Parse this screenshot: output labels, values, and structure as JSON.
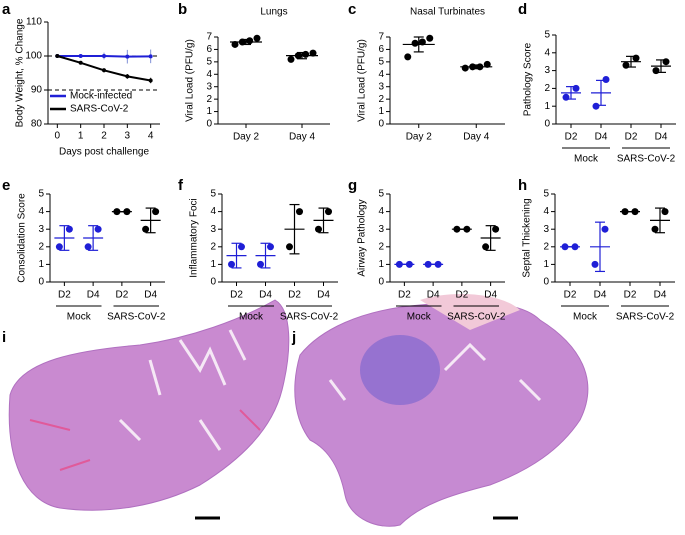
{
  "chart_data": [
    {
      "type": "line",
      "panel": "a",
      "ylabel": "Body Weight, % Change",
      "xlabel": "Days post challenge",
      "x": [
        0,
        1,
        2,
        3,
        4
      ],
      "xlim": [
        -0.4,
        4.4
      ],
      "xticks": [
        0,
        1,
        2,
        3,
        4
      ],
      "ylim": [
        80,
        110
      ],
      "yticks": [
        80,
        90,
        100,
        110
      ],
      "reference_lines": [
        100,
        90
      ],
      "legend": "lower left",
      "series": [
        {
          "name": "Mock-infected",
          "color": "#1f1fd6",
          "values": [
            100,
            100,
            100,
            99.8,
            99.9
          ],
          "errors": [
            0,
            0.5,
            1,
            2,
            2
          ]
        },
        {
          "name": "SARS-CoV-2",
          "color": "#000000",
          "values": [
            100,
            98,
            95.8,
            94,
            92.8
          ],
          "errors": [
            0,
            0.4,
            0.6,
            0.7,
            0.8
          ]
        }
      ]
    },
    {
      "type": "dot",
      "panel": "b",
      "title": "Lungs",
      "ylabel": "Viral Load (PFU/g)",
      "categories": [
        "Day 2",
        "Day 4"
      ],
      "colors": [
        "#000000",
        "#000000"
      ],
      "points": [
        [
          6.4,
          6.6,
          6.7,
          6.9
        ],
        [
          5.2,
          5.5,
          5.6,
          5.7
        ]
      ],
      "means": [
        6.6,
        5.5
      ],
      "errors": [
        0.2,
        0.25
      ],
      "ylim": [
        0,
        7
      ],
      "yticks": [
        0,
        1,
        2,
        3,
        4,
        5,
        6,
        7
      ]
    },
    {
      "type": "dot",
      "panel": "c",
      "title": "Nasal Turbinates",
      "ylabel": "Viral Load (PFU/g)",
      "categories": [
        "Day 2",
        "Day 4"
      ],
      "colors": [
        "#000000",
        "#000000"
      ],
      "points": [
        [
          5.4,
          6.5,
          6.6,
          6.9
        ],
        [
          4.5,
          4.6,
          4.6,
          4.8
        ]
      ],
      "means": [
        6.4,
        4.6
      ],
      "errors": [
        0.6,
        0.15
      ],
      "ylim": [
        0,
        7
      ],
      "yticks": [
        0,
        1,
        2,
        3,
        4,
        5,
        6,
        7
      ]
    },
    {
      "type": "dot",
      "panel": "d",
      "ylabel": "Pathology Score",
      "categories": [
        "D2",
        "D4",
        "D2",
        "D4"
      ],
      "group_labels": [
        "Mock",
        "SARS-CoV-2"
      ],
      "colors": [
        "#1f1fd6",
        "#1f1fd6",
        "#000000",
        "#000000"
      ],
      "points": [
        [
          1.5,
          2
        ],
        [
          1,
          2.5
        ],
        [
          3.3,
          3.7
        ],
        [
          3,
          3.5
        ]
      ],
      "means": [
        1.75,
        1.75,
        3.5,
        3.25
      ],
      "errors": [
        0.35,
        0.7,
        0.3,
        0.35
      ],
      "ylim": [
        0,
        5
      ],
      "yticks": [
        0,
        1,
        2,
        3,
        4,
        5
      ]
    },
    {
      "type": "dot",
      "panel": "e",
      "ylabel": "Consolidation Score",
      "categories": [
        "D2",
        "D4",
        "D2",
        "D4"
      ],
      "group_labels": [
        "Mock",
        "SARS-CoV-2"
      ],
      "colors": [
        "#1f1fd6",
        "#1f1fd6",
        "#000000",
        "#000000"
      ],
      "points": [
        [
          2,
          3
        ],
        [
          2,
          3
        ],
        [
          4,
          4
        ],
        [
          3,
          4
        ]
      ],
      "means": [
        2.5,
        2.5,
        4,
        3.5
      ],
      "errors": [
        0.7,
        0.7,
        0,
        0.7
      ],
      "ylim": [
        0,
        5
      ],
      "yticks": [
        0,
        1,
        2,
        3,
        4,
        5
      ]
    },
    {
      "type": "dot",
      "panel": "f",
      "ylabel": "Inflammatory Foci",
      "categories": [
        "D2",
        "D4",
        "D2",
        "D4"
      ],
      "group_labels": [
        "Mock",
        "SARS-CoV-2"
      ],
      "colors": [
        "#1f1fd6",
        "#1f1fd6",
        "#000000",
        "#000000"
      ],
      "points": [
        [
          1,
          2
        ],
        [
          1,
          2
        ],
        [
          2,
          4
        ],
        [
          3,
          4
        ]
      ],
      "means": [
        1.5,
        1.5,
        3,
        3.5
      ],
      "errors": [
        0.7,
        0.7,
        1.4,
        0.7
      ],
      "ylim": [
        0,
        5
      ],
      "yticks": [
        0,
        1,
        2,
        3,
        4,
        5
      ]
    },
    {
      "type": "dot",
      "panel": "g",
      "ylabel": "Airway Pathology",
      "categories": [
        "D2",
        "D4",
        "D2",
        "D4"
      ],
      "group_labels": [
        "Mock",
        "SARS-CoV-2"
      ],
      "colors": [
        "#1f1fd6",
        "#1f1fd6",
        "#000000",
        "#000000"
      ],
      "points": [
        [
          1,
          1
        ],
        [
          1,
          1
        ],
        [
          3,
          3
        ],
        [
          2,
          3
        ]
      ],
      "means": [
        1,
        1,
        3,
        2.5
      ],
      "errors": [
        0,
        0,
        0,
        0.7
      ],
      "ylim": [
        0,
        5
      ],
      "yticks": [
        0,
        1,
        2,
        3,
        4,
        5
      ]
    },
    {
      "type": "dot",
      "panel": "h",
      "ylabel": "Septal Thickening",
      "categories": [
        "D2",
        "D4",
        "D2",
        "D4"
      ],
      "group_labels": [
        "Mock",
        "SARS-CoV-2"
      ],
      "colors": [
        "#1f1fd6",
        "#1f1fd6",
        "#000000",
        "#000000"
      ],
      "points": [
        [
          2,
          2
        ],
        [
          1,
          3
        ],
        [
          4,
          4
        ],
        [
          3,
          4
        ]
      ],
      "means": [
        2,
        2,
        4,
        3.5
      ],
      "errors": [
        0,
        1.4,
        0,
        0.7
      ],
      "ylim": [
        0,
        5
      ],
      "yticks": [
        0,
        1,
        2,
        3,
        4,
        5
      ]
    }
  ],
  "images": [
    {
      "panel": "i"
    },
    {
      "panel": "j"
    }
  ]
}
